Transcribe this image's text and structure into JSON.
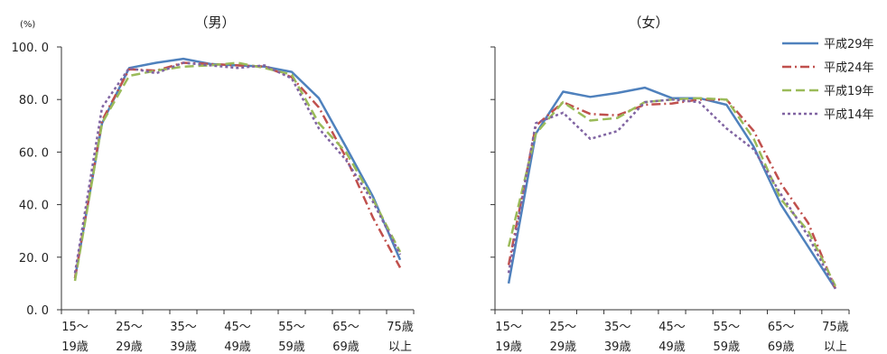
{
  "chart_data": [
    {
      "type": "line",
      "title": "（男）",
      "unit": "(%)",
      "ylim": [
        0,
        100
      ],
      "yticks": [
        "100. 0",
        "80. 0",
        "60. 0",
        "40. 0",
        "20. 0",
        "0. 0"
      ],
      "x_labels": [
        {
          "top": "15～",
          "bottom": "19歳"
        },
        {
          "top": "25～",
          "bottom": "29歳"
        },
        {
          "top": "35～",
          "bottom": "39歳"
        },
        {
          "top": "45～",
          "bottom": "49歳"
        },
        {
          "top": "55～",
          "bottom": "59歳"
        },
        {
          "top": "65～",
          "bottom": "69歳"
        },
        {
          "top": "75歳",
          "bottom": "以上"
        }
      ],
      "series": [
        {
          "name": "平成29年",
          "color": "#4f81bd",
          "dash": "solid",
          "values": [
            12,
            71,
            92,
            94,
            95.5,
            93.5,
            93,
            92.5,
            90.5,
            80.5,
            62,
            43,
            19
          ]
        },
        {
          "name": "平成24年",
          "color": "#c0504d",
          "dash": "dashdot",
          "values": [
            12,
            72,
            91.5,
            91,
            94,
            93.5,
            93,
            92.5,
            88.5,
            77,
            58,
            35,
            16
          ]
        },
        {
          "name": "平成19年",
          "color": "#9bbb59",
          "dash": "dash",
          "values": [
            11,
            71,
            89,
            91,
            92.5,
            93,
            94,
            92,
            89.5,
            71,
            60,
            42,
            22
          ]
        },
        {
          "name": "平成14年",
          "color": "#8064a2",
          "dash": "dot",
          "values": [
            14,
            77,
            92,
            90,
            94,
            93,
            92,
            93,
            88,
            69,
            57,
            41,
            21
          ]
        }
      ]
    },
    {
      "type": "line",
      "title": "（女）",
      "ylim": [
        0,
        100
      ],
      "x_labels": [
        {
          "top": "15～",
          "bottom": "19歳"
        },
        {
          "top": "25～",
          "bottom": "29歳"
        },
        {
          "top": "35～",
          "bottom": "39歳"
        },
        {
          "top": "45～",
          "bottom": "49歳"
        },
        {
          "top": "55～",
          "bottom": "59歳"
        },
        {
          "top": "65～",
          "bottom": "69歳"
        },
        {
          "top": "75歳",
          "bottom": "以上"
        }
      ],
      "series": [
        {
          "name": "平成29年",
          "color": "#4f81bd",
          "dash": "solid",
          "values": [
            10,
            67,
            83,
            81,
            82.5,
            84.5,
            80.5,
            80.5,
            78,
            62,
            40,
            24,
            8
          ]
        },
        {
          "name": "平成24年",
          "color": "#c0504d",
          "dash": "dashdot",
          "values": [
            17,
            70,
            79,
            74.5,
            74,
            78,
            78.5,
            80,
            80,
            68,
            48,
            33,
            8
          ]
        },
        {
          "name": "平成19年",
          "color": "#9bbb59",
          "dash": "dash",
          "values": [
            24,
            67,
            79,
            72,
            73,
            79,
            80,
            80.5,
            80,
            65,
            42,
            30,
            9
          ]
        },
        {
          "name": "平成14年",
          "color": "#8064a2",
          "dash": "dot",
          "values": [
            14,
            71,
            75,
            65,
            68,
            79,
            80,
            79,
            69,
            61,
            44,
            28,
            8
          ]
        }
      ]
    }
  ],
  "legend": [
    {
      "label": "平成29年",
      "color": "#4f81bd",
      "dash": "solid"
    },
    {
      "label": "平成24年",
      "color": "#c0504d",
      "dash": "dashdot"
    },
    {
      "label": "平成19年",
      "color": "#9bbb59",
      "dash": "dash"
    },
    {
      "label": "平成14年",
      "color": "#8064a2",
      "dash": "dot"
    }
  ]
}
